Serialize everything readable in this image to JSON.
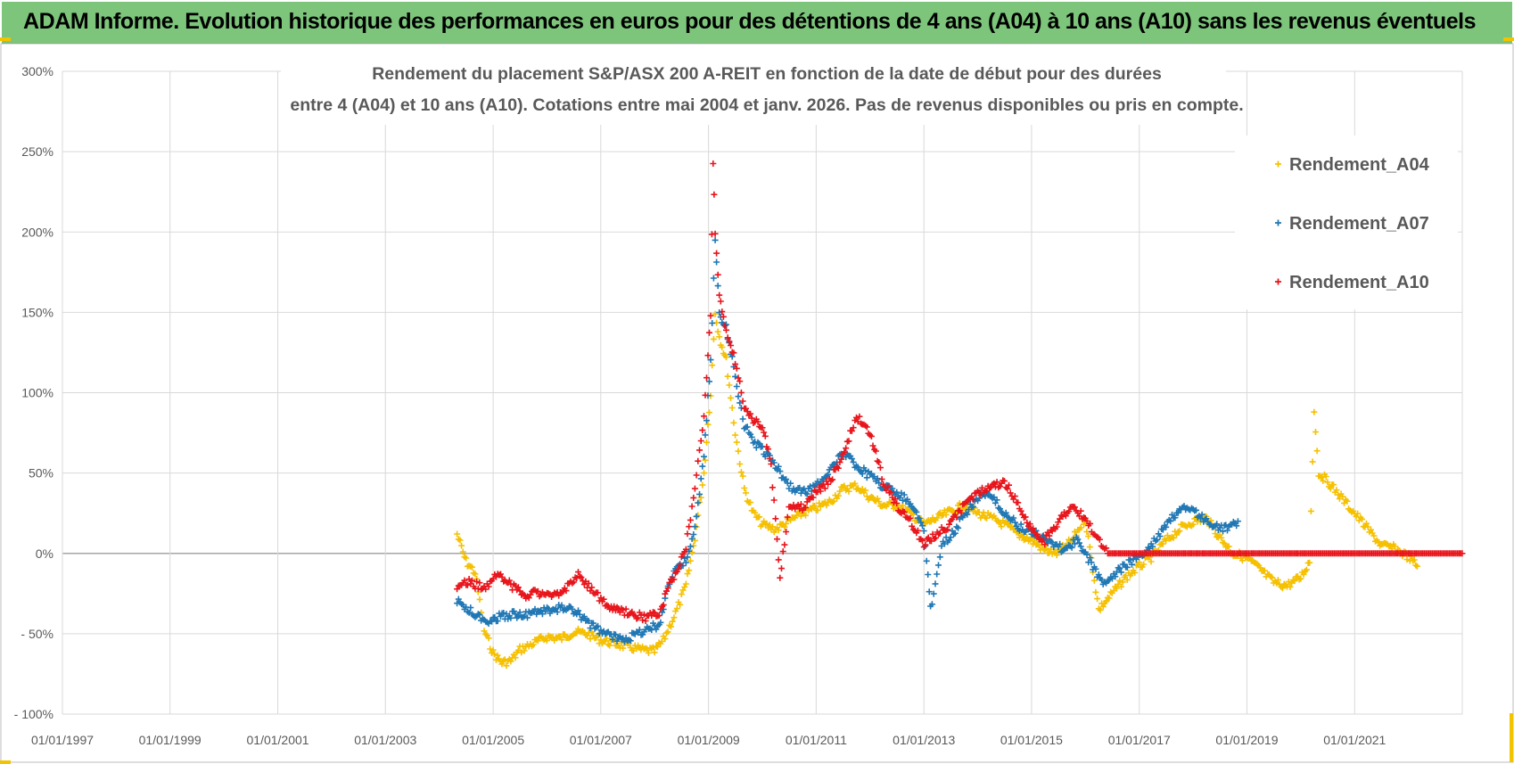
{
  "header": {
    "title": "ADAM Informe. Evolution historique des performances en euros pour des détentions de 4 ans (A04) à 10 ans (A10) sans les revenus éventuels"
  },
  "chart_data": {
    "type": "scatter",
    "title_line1": "Rendement du placement S&P/ASX 200 A-REIT en fonction de la date de début pour des durées",
    "title_line2": "entre 4 (A04) et 10 ans (A10).  Cotations entre mai 2004 et janv. 2026. Pas de revenus disponibles ou pris en compte.",
    "xlabel": "",
    "ylabel": "",
    "x_ticks": [
      "01/01/1997",
      "01/01/1999",
      "01/01/2001",
      "01/01/2003",
      "01/01/2005",
      "01/01/2007",
      "01/01/2009",
      "01/01/2011",
      "01/01/2013",
      "01/01/2015",
      "01/01/2017",
      "01/01/2019",
      "01/01/2021"
    ],
    "xlim": [
      "1997-01-01",
      "2023-01-01"
    ],
    "y_ticks": [
      "300%",
      "250%",
      "200%",
      "150%",
      "100%",
      "50%",
      "0%",
      "- 50%",
      "- 100%"
    ],
    "ylim": [
      -100,
      300
    ],
    "grid": true,
    "legend_position": "top-right",
    "series": [
      {
        "name": "Rendement_A04",
        "color": "#f5c000",
        "marker": "+",
        "points": [
          [
            "2004-05-01",
            12
          ],
          [
            "2004-07-01",
            -5
          ],
          [
            "2004-09-01",
            -12
          ],
          [
            "2004-11-01",
            -48
          ],
          [
            "2005-01-01",
            -62
          ],
          [
            "2005-03-01",
            -68
          ],
          [
            "2005-05-01",
            -67
          ],
          [
            "2005-07-01",
            -60
          ],
          [
            "2005-10-01",
            -56
          ],
          [
            "2006-01-01",
            -52
          ],
          [
            "2006-04-01",
            -53
          ],
          [
            "2006-07-01",
            -49
          ],
          [
            "2006-10-01",
            -50
          ],
          [
            "2007-01-01",
            -54
          ],
          [
            "2007-04-01",
            -56
          ],
          [
            "2007-07-01",
            -58
          ],
          [
            "2007-10-01",
            -60
          ],
          [
            "2008-01-01",
            -61
          ],
          [
            "2008-03-01",
            -54
          ],
          [
            "2008-06-01",
            -35
          ],
          [
            "2008-08-01",
            -20
          ],
          [
            "2008-10-01",
            10
          ],
          [
            "2008-12-01",
            50
          ],
          [
            "2009-01-15",
            100
          ],
          [
            "2009-02-15",
            150
          ],
          [
            "2009-03-15",
            135
          ],
          [
            "2009-05-01",
            120
          ],
          [
            "2009-07-01",
            75
          ],
          [
            "2009-09-01",
            40
          ],
          [
            "2009-11-01",
            25
          ],
          [
            "2010-01-01",
            18
          ],
          [
            "2010-04-01",
            15
          ],
          [
            "2010-07-01",
            20
          ],
          [
            "2010-10-01",
            25
          ],
          [
            "2011-01-01",
            28
          ],
          [
            "2011-04-01",
            32
          ],
          [
            "2011-07-01",
            40
          ],
          [
            "2011-10-01",
            42
          ],
          [
            "2012-01-01",
            35
          ],
          [
            "2012-04-01",
            30
          ],
          [
            "2012-07-01",
            30
          ],
          [
            "2012-10-01",
            25
          ],
          [
            "2013-01-01",
            18
          ],
          [
            "2013-04-01",
            22
          ],
          [
            "2013-07-01",
            26
          ],
          [
            "2013-10-01",
            30
          ],
          [
            "2014-01-01",
            25
          ],
          [
            "2014-04-01",
            22
          ],
          [
            "2014-07-01",
            18
          ],
          [
            "2014-10-01",
            12
          ],
          [
            "2015-01-01",
            8
          ],
          [
            "2015-04-01",
            2
          ],
          [
            "2015-07-01",
            0
          ],
          [
            "2015-10-01",
            8
          ],
          [
            "2016-01-01",
            22
          ],
          [
            "2016-04-01",
            -35
          ],
          [
            "2016-07-01",
            -25
          ],
          [
            "2016-10-01",
            -15
          ],
          [
            "2017-01-01",
            -8
          ],
          [
            "2017-04-01",
            -2
          ],
          [
            "2017-07-01",
            8
          ],
          [
            "2017-10-01",
            15
          ],
          [
            "2018-01-01",
            20
          ],
          [
            "2018-04-01",
            22
          ],
          [
            "2018-07-01",
            10
          ],
          [
            "2018-10-01",
            0
          ],
          [
            "2019-01-01",
            -3
          ],
          [
            "2019-04-01",
            -10
          ],
          [
            "2019-07-01",
            -18
          ],
          [
            "2019-10-01",
            -20
          ],
          [
            "2020-01-01",
            -15
          ],
          [
            "2020-03-01",
            -5
          ],
          [
            "2020-04-01",
            90
          ],
          [
            "2020-05-01",
            50
          ],
          [
            "2020-07-01",
            45
          ],
          [
            "2020-10-01",
            35
          ],
          [
            "2021-01-01",
            25
          ],
          [
            "2021-04-01",
            15
          ],
          [
            "2021-07-01",
            5
          ],
          [
            "2021-10-01",
            3
          ],
          [
            "2022-01-01",
            -2
          ],
          [
            "2022-03-01",
            -8
          ]
        ]
      },
      {
        "name": "Rendement_A07",
        "color": "#1f77b4",
        "marker": "+",
        "points": [
          [
            "2004-05-01",
            -30
          ],
          [
            "2004-08-01",
            -36
          ],
          [
            "2004-11-01",
            -42
          ],
          [
            "2005-02-01",
            -40
          ],
          [
            "2005-05-01",
            -38
          ],
          [
            "2005-08-01",
            -38
          ],
          [
            "2005-11-01",
            -36
          ],
          [
            "2006-02-01",
            -36
          ],
          [
            "2006-05-01",
            -33
          ],
          [
            "2006-08-01",
            -38
          ],
          [
            "2006-11-01",
            -45
          ],
          [
            "2007-02-01",
            -50
          ],
          [
            "2007-05-01",
            -53
          ],
          [
            "2007-08-01",
            -52
          ],
          [
            "2007-11-01",
            -47
          ],
          [
            "2008-02-01",
            -45
          ],
          [
            "2008-04-01",
            -20
          ],
          [
            "2008-06-01",
            -8
          ],
          [
            "2008-08-01",
            -5
          ],
          [
            "2008-10-01",
            15
          ],
          [
            "2008-12-01",
            60
          ],
          [
            "2009-01-15",
            120
          ],
          [
            "2009-02-15",
            195
          ],
          [
            "2009-03-15",
            150
          ],
          [
            "2009-05-01",
            140
          ],
          [
            "2009-07-01",
            110
          ],
          [
            "2009-09-01",
            80
          ],
          [
            "2009-11-01",
            70
          ],
          [
            "2010-01-01",
            65
          ],
          [
            "2010-04-01",
            55
          ],
          [
            "2010-07-01",
            42
          ],
          [
            "2010-10-01",
            38
          ],
          [
            "2011-01-01",
            42
          ],
          [
            "2011-04-01",
            52
          ],
          [
            "2011-07-01",
            62
          ],
          [
            "2011-10-01",
            55
          ],
          [
            "2012-01-01",
            48
          ],
          [
            "2012-04-01",
            42
          ],
          [
            "2012-07-01",
            38
          ],
          [
            "2012-10-01",
            32
          ],
          [
            "2013-01-01",
            15
          ],
          [
            "2013-02-15",
            -35
          ],
          [
            "2013-05-01",
            5
          ],
          [
            "2013-08-01",
            15
          ],
          [
            "2013-11-01",
            28
          ],
          [
            "2014-02-01",
            38
          ],
          [
            "2014-05-01",
            32
          ],
          [
            "2014-08-01",
            22
          ],
          [
            "2014-11-01",
            15
          ],
          [
            "2015-02-01",
            12
          ],
          [
            "2015-05-01",
            8
          ],
          [
            "2015-08-01",
            2
          ],
          [
            "2015-11-01",
            8
          ],
          [
            "2016-02-01",
            -5
          ],
          [
            "2016-05-01",
            -18
          ],
          [
            "2016-08-01",
            -12
          ],
          [
            "2016-11-01",
            -5
          ],
          [
            "2017-02-01",
            0
          ],
          [
            "2017-05-01",
            10
          ],
          [
            "2017-08-01",
            22
          ],
          [
            "2017-11-01",
            28
          ],
          [
            "2018-02-01",
            25
          ],
          [
            "2018-05-01",
            18
          ],
          [
            "2018-08-01",
            15
          ],
          [
            "2018-11-01",
            20
          ]
        ]
      },
      {
        "name": "Rendement_A10",
        "color": "#e8141b",
        "marker": "+",
        "points": [
          [
            "2004-05-01",
            -20
          ],
          [
            "2004-08-01",
            -18
          ],
          [
            "2004-11-01",
            -22
          ],
          [
            "2005-02-01",
            -12
          ],
          [
            "2005-05-01",
            -20
          ],
          [
            "2005-08-01",
            -26
          ],
          [
            "2005-11-01",
            -24
          ],
          [
            "2006-02-01",
            -28
          ],
          [
            "2006-05-01",
            -22
          ],
          [
            "2006-08-01",
            -14
          ],
          [
            "2006-11-01",
            -22
          ],
          [
            "2007-02-01",
            -32
          ],
          [
            "2007-05-01",
            -36
          ],
          [
            "2007-08-01",
            -38
          ],
          [
            "2007-11-01",
            -40
          ],
          [
            "2008-02-01",
            -38
          ],
          [
            "2008-04-01",
            -22
          ],
          [
            "2008-06-01",
            -10
          ],
          [
            "2008-08-01",
            5
          ],
          [
            "2008-10-01",
            40
          ],
          [
            "2008-12-01",
            85
          ],
          [
            "2009-01-15",
            150
          ],
          [
            "2009-02-01",
            245
          ],
          [
            "2009-02-15",
            200
          ],
          [
            "2009-03-15",
            160
          ],
          [
            "2009-05-01",
            140
          ],
          [
            "2009-07-01",
            120
          ],
          [
            "2009-09-01",
            90
          ],
          [
            "2009-11-01",
            82
          ],
          [
            "2010-01-01",
            80
          ],
          [
            "2010-03-01",
            55
          ],
          [
            "2010-05-01",
            -15
          ],
          [
            "2010-07-01",
            30
          ],
          [
            "2010-10-01",
            28
          ],
          [
            "2011-01-01",
            38
          ],
          [
            "2011-04-01",
            45
          ],
          [
            "2011-07-01",
            60
          ],
          [
            "2011-10-01",
            85
          ],
          [
            "2012-01-01",
            75
          ],
          [
            "2012-04-01",
            45
          ],
          [
            "2012-07-01",
            30
          ],
          [
            "2012-10-01",
            20
          ],
          [
            "2013-01-01",
            5
          ],
          [
            "2013-04-01",
            12
          ],
          [
            "2013-07-01",
            18
          ],
          [
            "2013-10-01",
            30
          ],
          [
            "2014-01-01",
            38
          ],
          [
            "2014-04-01",
            40
          ],
          [
            "2014-07-01",
            45
          ],
          [
            "2014-10-01",
            30
          ],
          [
            "2015-01-01",
            15
          ],
          [
            "2015-04-01",
            8
          ],
          [
            "2015-07-01",
            20
          ],
          [
            "2015-10-01",
            30
          ],
          [
            "2016-01-01",
            22
          ],
          [
            "2016-06-01",
            0
          ],
          [
            "2017-01-01",
            0
          ],
          [
            "2018-01-01",
            0
          ],
          [
            "2019-01-01",
            0
          ],
          [
            "2020-01-01",
            0
          ],
          [
            "2021-01-01",
            0
          ],
          [
            "2022-01-01",
            0
          ],
          [
            "2023-01-01",
            0
          ]
        ]
      }
    ]
  }
}
